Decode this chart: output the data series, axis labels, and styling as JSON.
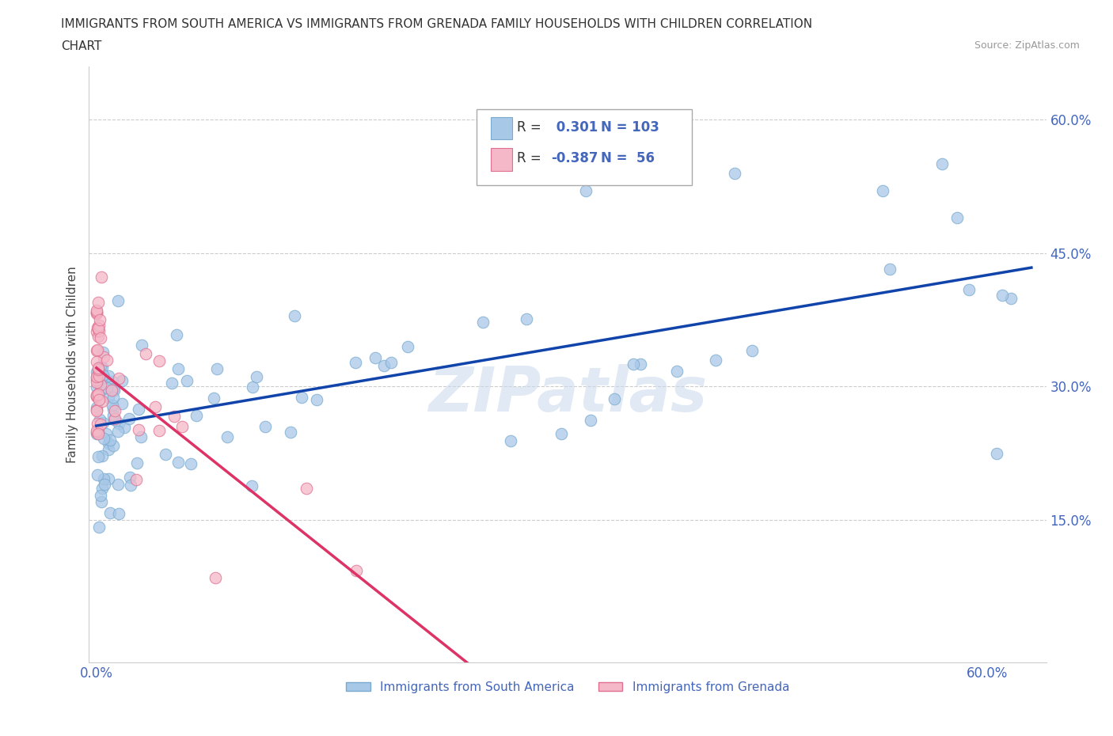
{
  "title_line1": "IMMIGRANTS FROM SOUTH AMERICA VS IMMIGRANTS FROM GRENADA FAMILY HOUSEHOLDS WITH CHILDREN CORRELATION",
  "title_line2": "CHART",
  "source": "Source: ZipAtlas.com",
  "ylabel": "Family Households with Children",
  "xlim": [
    -0.005,
    0.64
  ],
  "ylim": [
    -0.01,
    0.66
  ],
  "grid_color": "#cccccc",
  "background_color": "#ffffff",
  "south_america_color": "#a8c8e8",
  "south_america_edge": "#7aabcf",
  "grenada_color": "#f4b8c8",
  "grenada_edge": "#e07090",
  "south_america_R": 0.301,
  "south_america_N": 103,
  "grenada_R": -0.387,
  "grenada_N": 56,
  "legend_label_blue": "Immigrants from South America",
  "legend_label_pink": "Immigrants from Grenada",
  "text_color_blue": "#4466bb",
  "text_color_dark": "#333333",
  "watermark": "ZIPatlas",
  "sa_line_color": "#1144aa",
  "gr_line_color": "#dd3366",
  "gr_line_dashed_color": "#ddaabb"
}
